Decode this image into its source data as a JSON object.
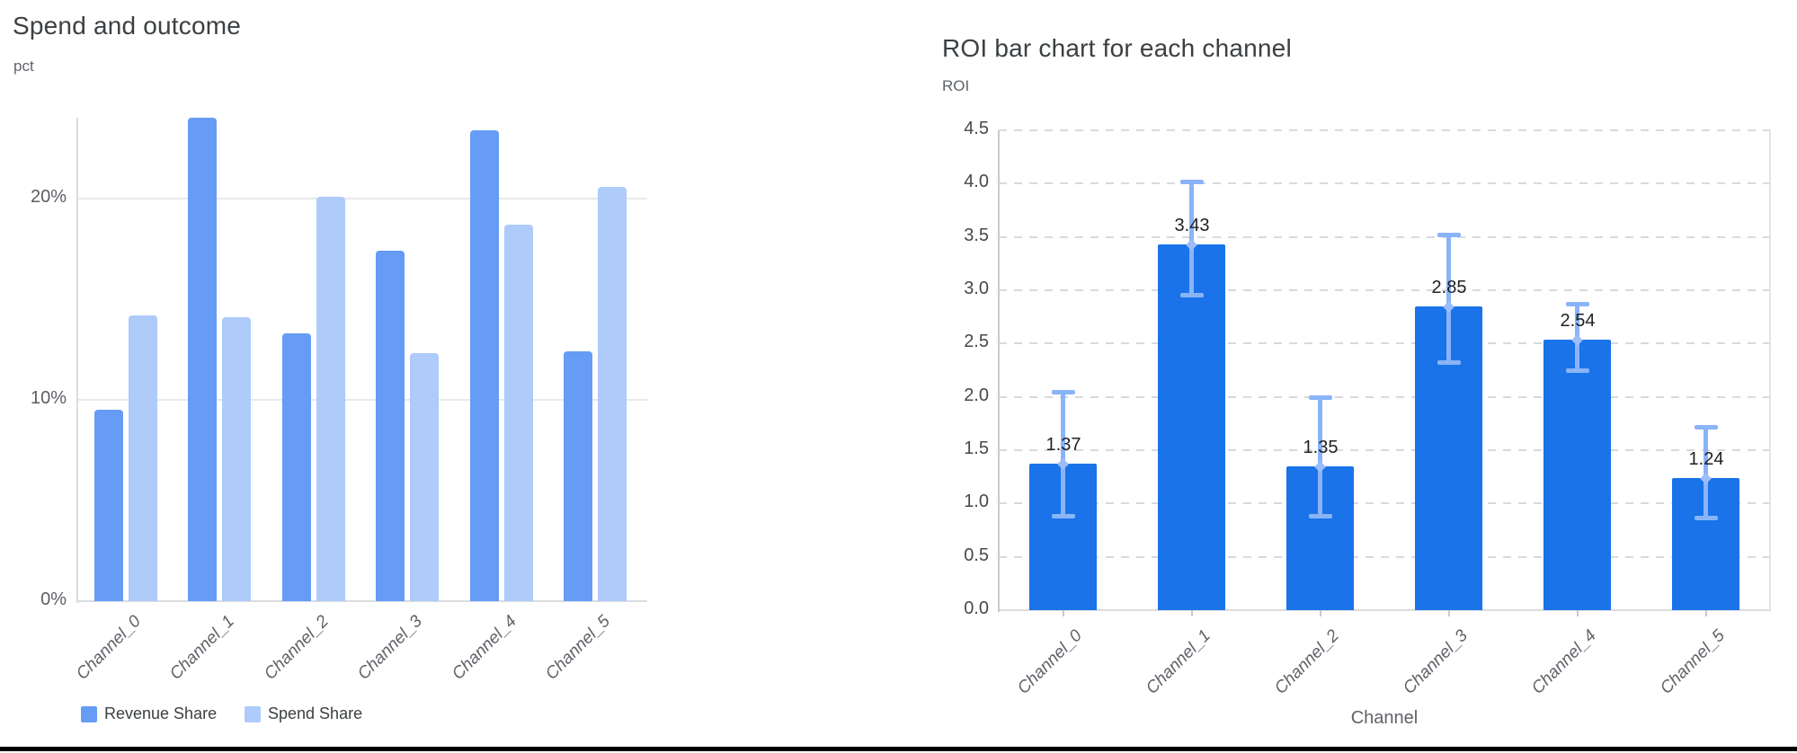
{
  "page": {
    "background": "#ffffff",
    "bottom_rule_color": "#000000"
  },
  "chart_data": [
    {
      "id": "spend_and_outcome",
      "type": "bar",
      "title": "Spend and outcome",
      "ylabel": "pct",
      "xlabel": "",
      "categories": [
        "Channel_0",
        "Channel_1",
        "Channel_2",
        "Channel_3",
        "Channel_4",
        "Channel_5"
      ],
      "series": [
        {
          "name": "Revenue Share",
          "color": "#669cf6",
          "values": [
            9.5,
            24.0,
            13.3,
            17.4,
            23.4,
            12.4
          ]
        },
        {
          "name": "Spend Share",
          "color": "#aecbfa",
          "values": [
            14.2,
            14.1,
            20.1,
            12.3,
            18.7,
            20.6
          ]
        }
      ],
      "yticks": {
        "values": [
          0,
          10,
          20
        ],
        "labels": [
          "0%",
          "10%",
          "20%"
        ]
      },
      "ylim": [
        0,
        24.05
      ],
      "grid": "solid",
      "legend_position": "bottom",
      "category_label_style": "italic-rotated-45"
    },
    {
      "id": "roi_per_channel",
      "type": "bar",
      "title": "ROI bar chart for each channel",
      "ylabel": "ROI",
      "xlabel": "Channel",
      "categories": [
        "Channel_0",
        "Channel_1",
        "Channel_2",
        "Channel_3",
        "Channel_4",
        "Channel_5"
      ],
      "series": [
        {
          "name": "ROI",
          "color": "#1a73e8",
          "values": [
            1.37,
            3.43,
            1.35,
            2.85,
            2.54,
            1.24
          ]
        }
      ],
      "bar_value_labels": [
        "1.37",
        "3.43",
        "1.35",
        "2.85",
        "2.54",
        "1.24"
      ],
      "error_low": [
        0.88,
        2.95,
        0.88,
        2.32,
        2.24,
        0.86
      ],
      "error_high": [
        2.05,
        4.02,
        2.0,
        3.52,
        2.87,
        1.72
      ],
      "error_color": "#8ab4f8",
      "yticks": {
        "values": [
          0,
          0.5,
          1,
          1.5,
          2,
          2.5,
          3,
          3.5,
          4,
          4.5
        ],
        "labels": [
          "0.0",
          "0.5",
          "1.0",
          "1.5",
          "2.0",
          "2.5",
          "3.0",
          "3.5",
          "4.0",
          "4.5"
        ]
      },
      "ylim": [
        0,
        4.5
      ],
      "grid": "dashed",
      "legend_position": "none",
      "category_label_style": "italic-rotated-45"
    }
  ]
}
